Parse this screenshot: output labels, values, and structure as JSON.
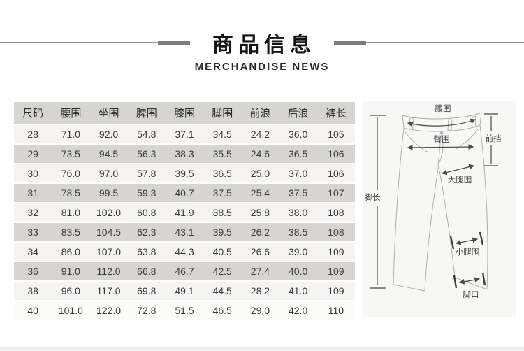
{
  "header": {
    "title": "商品信息",
    "subtitle": "MERCHANDISE NEWS"
  },
  "size_table": {
    "columns": [
      "尺码",
      "腰围",
      "坐围",
      "脾围",
      "膝围",
      "脚围",
      "前浪",
      "后浪",
      "裤长"
    ],
    "rows": [
      [
        "28",
        "71.0",
        "92.0",
        "54.8",
        "37.1",
        "34.5",
        "24.2",
        "36.0",
        "105"
      ],
      [
        "29",
        "73.5",
        "94.5",
        "56.3",
        "38.3",
        "35.5",
        "24.6",
        "36.5",
        "106"
      ],
      [
        "30",
        "76.0",
        "97.0",
        "57.8",
        "39.5",
        "36.5",
        "25.0",
        "37.0",
        "106"
      ],
      [
        "31",
        "78.5",
        "99.5",
        "59.3",
        "40.7",
        "37.5",
        "25.4",
        "37.5",
        "107"
      ],
      [
        "32",
        "81.0",
        "102.0",
        "60.8",
        "41.9",
        "38.5",
        "25.8",
        "38.0",
        "108"
      ],
      [
        "33",
        "83.5",
        "104.5",
        "62.3",
        "43.1",
        "39.5",
        "26.2",
        "38.5",
        "108"
      ],
      [
        "34",
        "86.0",
        "107.0",
        "63.8",
        "44.3",
        "40.5",
        "26.6",
        "39.0",
        "109"
      ],
      [
        "36",
        "91.0",
        "112.0",
        "66.8",
        "46.7",
        "42.5",
        "27.4",
        "40.0",
        "109"
      ],
      [
        "38",
        "96.0",
        "117.0",
        "69.8",
        "49.1",
        "44.5",
        "28.2",
        "41.0",
        "109"
      ],
      [
        "40",
        "101.0",
        "122.0",
        "72.8",
        "51.5",
        "46.5",
        "29.0",
        "42.0",
        "110"
      ]
    ]
  },
  "diagram": {
    "labels": {
      "waist": "腰围",
      "hip": "臀围",
      "front_rise": "前挡",
      "thigh": "大腿围",
      "leg_length": "脚长",
      "calf": "小腿围",
      "hem": "脚口"
    }
  },
  "colors": {
    "header_row_bg": "#d7d5d2",
    "light_row_bg": "#f5f4f2",
    "decor_line": "#7d7d7d",
    "title_text": "#141414",
    "garment_line": "#aeaeae",
    "measure_line": "#4a4a4a"
  }
}
